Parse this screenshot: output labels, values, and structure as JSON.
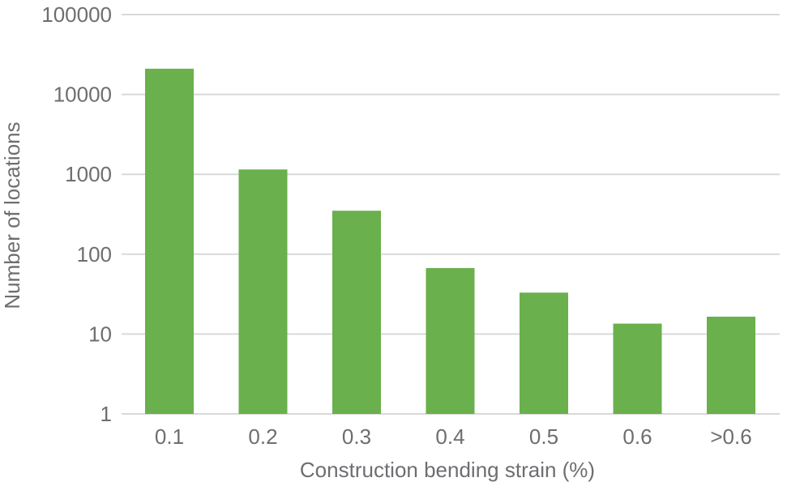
{
  "chart_data": {
    "type": "bar",
    "categories": [
      "0.1",
      "0.2",
      "0.3",
      "0.4",
      "0.5",
      "0.6",
      ">0.6"
    ],
    "values": [
      21000,
      1150,
      350,
      67,
      33,
      13.5,
      16.5
    ],
    "title": "",
    "xlabel": "Construction bending strain (%)",
    "ylabel": "Number of locations",
    "yscale": "log",
    "ylim": [
      1,
      100000
    ],
    "yticks": [
      "1",
      "10",
      "100",
      "1000",
      "10000",
      "100000"
    ],
    "grid": "horizontal",
    "legend": "none",
    "colors": {
      "bar": "#6ab04c",
      "grid": "#d9d9d9",
      "text": "#6d6e71"
    }
  }
}
